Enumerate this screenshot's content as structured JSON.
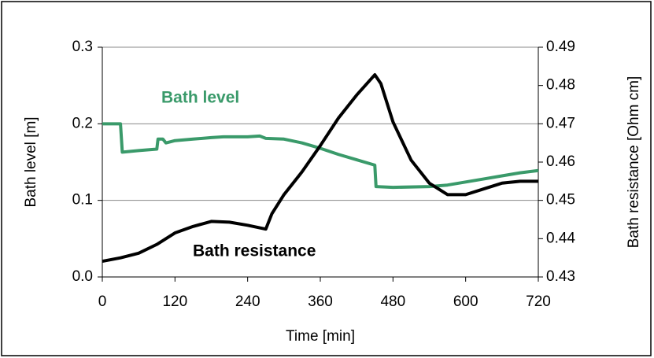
{
  "chart_data": {
    "type": "line",
    "xlabel": "Time [min]",
    "ylabel": "Bath level [m]",
    "y2label": "Bath resistance [Ohm cm]",
    "xlim": [
      0,
      720
    ],
    "xticks": [
      0,
      120,
      240,
      360,
      480,
      600,
      720
    ],
    "ylim": [
      0,
      0.3
    ],
    "yticks": [
      {
        "value": 0,
        "label": "0.0"
      },
      0.1,
      0.2,
      0.3
    ],
    "y2lim": [
      0.43,
      0.49
    ],
    "y2ticks": [
      0.43,
      0.44,
      0.45,
      0.46,
      0.47,
      0.48,
      0.49
    ],
    "grid": true,
    "series": [
      {
        "name": "Bath level",
        "color": "#3a9a6a",
        "x": [
          0,
          30,
          33,
          60,
          90,
          92,
          100,
          105,
          120,
          150,
          180,
          200,
          240,
          260,
          270,
          300,
          330,
          360,
          390,
          420,
          450,
          452,
          480,
          540,
          570,
          600,
          630,
          660,
          690,
          720
        ],
        "values": [
          0.2,
          0.2,
          0.163,
          0.165,
          0.167,
          0.18,
          0.18,
          0.175,
          0.178,
          0.18,
          0.182,
          0.183,
          0.183,
          0.184,
          0.181,
          0.18,
          0.175,
          0.168,
          0.16,
          0.153,
          0.146,
          0.118,
          0.117,
          0.118,
          0.12,
          0.124,
          0.128,
          0.132,
          0.136,
          0.139
        ]
      },
      {
        "name": "Bath resistance",
        "color": "#000000",
        "axis": "y2",
        "x": [
          0,
          30,
          60,
          90,
          120,
          150,
          180,
          210,
          240,
          270,
          280,
          300,
          330,
          360,
          390,
          420,
          450,
          460,
          480,
          510,
          540,
          570,
          600,
          630,
          660,
          690,
          720
        ],
        "values": [
          0.4341,
          0.435,
          0.4362,
          0.4385,
          0.4415,
          0.4432,
          0.4445,
          0.4443,
          0.4435,
          0.4425,
          0.4465,
          0.4515,
          0.4575,
          0.4643,
          0.4715,
          0.4775,
          0.4828,
          0.4805,
          0.4705,
          0.4605,
          0.4545,
          0.4515,
          0.4515,
          0.453,
          0.4545,
          0.455,
          0.455
        ]
      }
    ]
  }
}
